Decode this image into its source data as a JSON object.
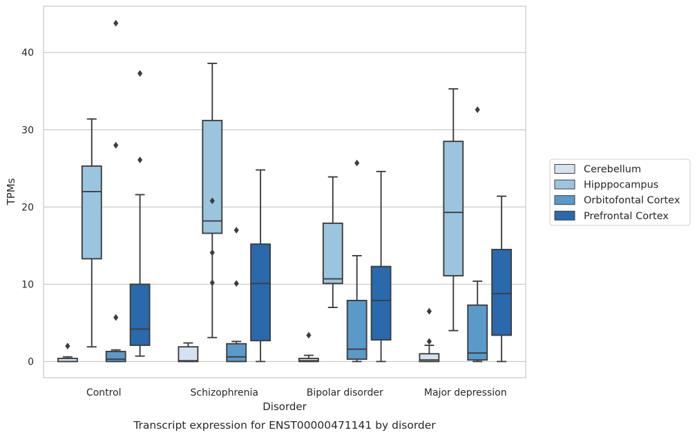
{
  "chart_data": {
    "type": "box",
    "title": "",
    "caption": "Transcript expression for ENST00000471141 by disorder",
    "xlabel": "Disorder",
    "ylabel": "TPMs",
    "ylim": [
      -2.1,
      46.0
    ],
    "yticks": [
      0,
      10,
      20,
      30,
      40
    ],
    "grid": "horizontal",
    "legend_position": "right",
    "categories": [
      "Control",
      "Schizophrenia",
      "Bipolar disorder",
      "Major depression"
    ],
    "series": [
      {
        "name": "Cerebellum",
        "color": "#d4e2f2",
        "boxes": [
          {
            "whisker_low": 0.0,
            "q1": 0.0,
            "median": 0.0,
            "q3": 0.4,
            "whisker_high": 0.6,
            "outliers": [
              2.0
            ]
          },
          {
            "whisker_low": 0.0,
            "q1": 0.0,
            "median": 0.1,
            "q3": 1.9,
            "whisker_high": 2.4,
            "outliers": []
          },
          {
            "whisker_low": 0.0,
            "q1": 0.0,
            "median": 0.1,
            "q3": 0.4,
            "whisker_high": 0.8,
            "outliers": [
              3.4
            ]
          },
          {
            "whisker_low": 0.0,
            "q1": 0.0,
            "median": 0.2,
            "q3": 1.0,
            "whisker_high": 2.1,
            "outliers": [
              2.6,
              6.5
            ]
          }
        ]
      },
      {
        "name": "Hipppocampus",
        "color": "#9bc4de",
        "boxes": [
          {
            "whisker_low": 1.9,
            "q1": 13.3,
            "median": 22.0,
            "q3": 25.3,
            "whisker_high": 31.4,
            "outliers": []
          },
          {
            "whisker_low": 3.1,
            "q1": 16.6,
            "median": 18.2,
            "q3": 31.2,
            "whisker_high": 38.6,
            "outliers": [
              10.2,
              14.1,
              20.8
            ]
          },
          {
            "whisker_low": 7.0,
            "q1": 10.1,
            "median": 10.7,
            "q3": 17.9,
            "whisker_high": 23.9,
            "outliers": []
          },
          {
            "whisker_low": 4.0,
            "q1": 11.1,
            "median": 19.3,
            "q3": 28.5,
            "whisker_high": 35.3,
            "outliers": []
          }
        ]
      },
      {
        "name": "Orbitofontal Cortex",
        "color": "#5a9ac8",
        "boxes": [
          {
            "whisker_low": 0.0,
            "q1": 0.0,
            "median": 0.3,
            "q3": 1.3,
            "whisker_high": 1.5,
            "outliers": [
              5.7,
              28.0,
              43.8
            ]
          },
          {
            "whisker_low": 0.0,
            "q1": 0.0,
            "median": 0.6,
            "q3": 2.3,
            "whisker_high": 2.6,
            "outliers": [
              10.1,
              17.0
            ]
          },
          {
            "whisker_low": 0.0,
            "q1": 0.3,
            "median": 1.6,
            "q3": 7.9,
            "whisker_high": 13.7,
            "outliers": [
              25.7
            ]
          },
          {
            "whisker_low": 0.0,
            "q1": 0.2,
            "median": 1.1,
            "q3": 7.3,
            "whisker_high": 10.4,
            "outliers": [
              32.6
            ]
          }
        ]
      },
      {
        "name": "Prefrontal Cortex",
        "color": "#2969ac",
        "boxes": [
          {
            "whisker_low": 0.7,
            "q1": 2.1,
            "median": 4.2,
            "q3": 10.0,
            "whisker_high": 21.6,
            "outliers": [
              26.1,
              37.3
            ]
          },
          {
            "whisker_low": 0.0,
            "q1": 2.7,
            "median": 10.1,
            "q3": 15.2,
            "whisker_high": 24.8,
            "outliers": []
          },
          {
            "whisker_low": 0.0,
            "q1": 2.8,
            "median": 7.9,
            "q3": 12.3,
            "whisker_high": 24.6,
            "outliers": []
          },
          {
            "whisker_low": 0.0,
            "q1": 3.4,
            "median": 8.8,
            "q3": 14.5,
            "whisker_high": 21.4,
            "outliers": []
          }
        ]
      }
    ]
  }
}
